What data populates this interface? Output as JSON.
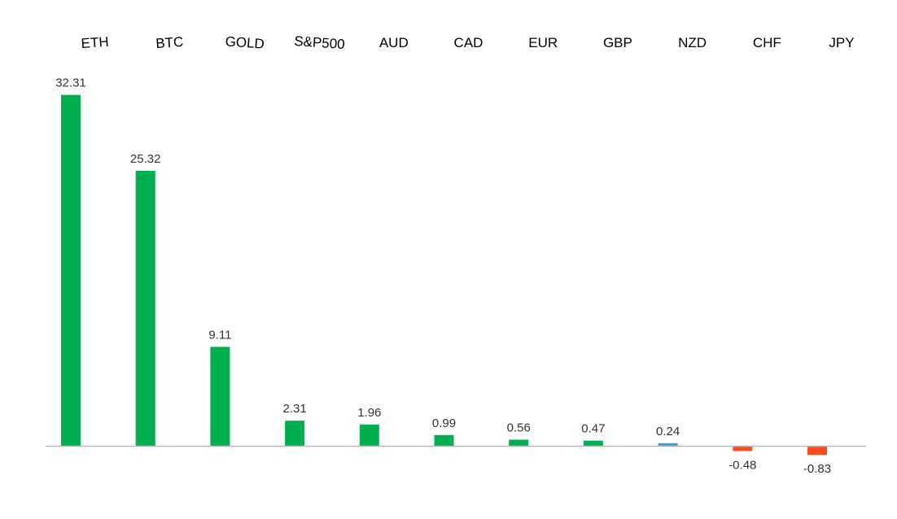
{
  "chart_data": {
    "type": "bar",
    "categories": [
      "ETH",
      "BTC",
      "GOLD",
      "S&P500",
      "AUD",
      "CAD",
      "EUR",
      "GBP",
      "NZD",
      "CHF",
      "JPY"
    ],
    "values": [
      32.31,
      25.32,
      9.11,
      2.31,
      1.96,
      0.99,
      0.56,
      0.47,
      0.24,
      -0.48,
      -0.83
    ],
    "value_labels": [
      "32.31",
      "25.32",
      "9.11",
      "2.31",
      "1.96",
      "0.99",
      "0.56",
      "0.47",
      "0.24",
      "-0.48",
      "-0.83"
    ],
    "title": "",
    "xlabel": "",
    "ylabel": "",
    "category_axis_position": "top",
    "grid": false,
    "legend": "none",
    "colors": {
      "positive": "#00b050",
      "negative": "#ff4a1c",
      "small_positive": "#3a9fd8",
      "baseline": "#b7b7b7"
    }
  }
}
